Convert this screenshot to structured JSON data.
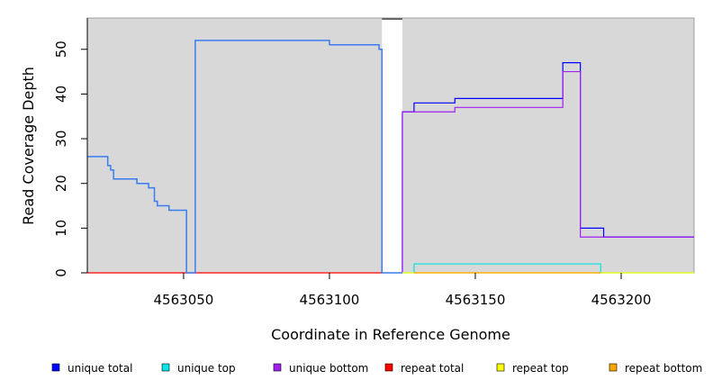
{
  "chart_data": {
    "type": "line",
    "xlabel": "Coordinate in Reference Genome",
    "ylabel": "Read Coverage Depth",
    "xlim": [
      4563017,
      4563225
    ],
    "ylim": [
      0,
      57
    ],
    "xticks": [
      4563050,
      4563100,
      4563150,
      4563200
    ],
    "yticks": [
      0,
      10,
      20,
      30,
      40,
      50
    ],
    "background_color": "#d8d8d8",
    "gap_region": {
      "x": [
        4563118,
        4563125
      ],
      "color": "#ffffff"
    },
    "legend": {
      "position": "bottom"
    },
    "series": [
      {
        "name": "unique total",
        "color": "#0000ff",
        "points": [
          [
            4563125,
            0
          ],
          [
            4563125,
            36
          ],
          [
            4563129,
            36
          ],
          [
            4563129,
            38
          ],
          [
            4563143,
            38
          ],
          [
            4563143,
            39
          ],
          [
            4563180,
            39
          ],
          [
            4563180,
            47
          ],
          [
            4563186,
            47
          ],
          [
            4563186,
            10
          ],
          [
            4563194,
            10
          ],
          [
            4563194,
            8
          ],
          [
            4563225,
            8
          ]
        ]
      },
      {
        "name": "unique top",
        "color": "#00e5e5",
        "points": [
          [
            4563125,
            0
          ],
          [
            4563129,
            0
          ],
          [
            4563129,
            2
          ],
          [
            4563193,
            2
          ],
          [
            4563193,
            0
          ],
          [
            4563225,
            0
          ]
        ]
      },
      {
        "name": "unique bottom",
        "color": "#a020f0",
        "points": [
          [
            4563125,
            0
          ],
          [
            4563125,
            36
          ],
          [
            4563143,
            36
          ],
          [
            4563143,
            37
          ],
          [
            4563180,
            37
          ],
          [
            4563180,
            45
          ],
          [
            4563186,
            45
          ],
          [
            4563186,
            8
          ],
          [
            4563225,
            8
          ]
        ]
      },
      {
        "name": "repeat total",
        "color": "#ff0000",
        "points": [
          [
            4563017,
            0
          ],
          [
            4563118,
            0
          ]
        ]
      },
      {
        "name": "repeat top",
        "color": "#ffff00",
        "points": [
          [
            4563125,
            0
          ],
          [
            4563225,
            0
          ]
        ]
      },
      {
        "name": "repeat bottom",
        "color": "#ffa500",
        "points": [
          [
            4563129,
            0
          ],
          [
            4563193,
            0
          ]
        ]
      },
      {
        "name": "",
        "color": "#3a7cf0",
        "points": [
          [
            4563017,
            26
          ],
          [
            4563024,
            26
          ],
          [
            4563024,
            24
          ],
          [
            4563025,
            24
          ],
          [
            4563025,
            23
          ],
          [
            4563026,
            23
          ],
          [
            4563026,
            21
          ],
          [
            4563034,
            21
          ],
          [
            4563034,
            20
          ],
          [
            4563038,
            20
          ],
          [
            4563038,
            19
          ],
          [
            4563040,
            19
          ],
          [
            4563040,
            16
          ],
          [
            4563041,
            16
          ],
          [
            4563041,
            15
          ],
          [
            4563045,
            15
          ],
          [
            4563045,
            14
          ],
          [
            4563051,
            14
          ],
          [
            4563051,
            0
          ],
          [
            4563054,
            0
          ],
          [
            4563054,
            52
          ],
          [
            4563100,
            52
          ],
          [
            4563100,
            51
          ],
          [
            4563117,
            51
          ],
          [
            4563117,
            50
          ],
          [
            4563118,
            50
          ],
          [
            4563118,
            0
          ],
          [
            4563125,
            0
          ],
          [
            4563125,
            0
          ]
        ]
      }
    ]
  }
}
